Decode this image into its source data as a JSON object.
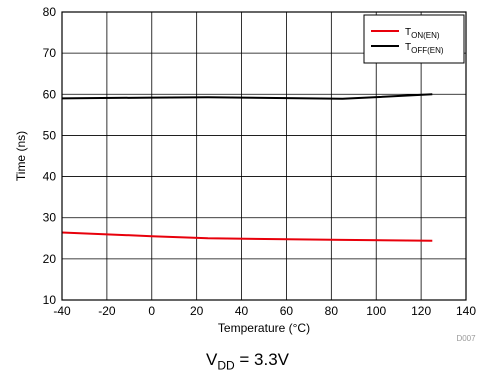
{
  "chart_data": {
    "type": "line",
    "xlabel": "Temperature (°C)",
    "ylabel": "Time (ns)",
    "xlim": [
      -40,
      140
    ],
    "ylim": [
      10,
      80
    ],
    "x_ticks": [
      -40,
      -20,
      0,
      20,
      40,
      60,
      80,
      100,
      120,
      140
    ],
    "y_ticks": [
      10,
      20,
      30,
      40,
      50,
      60,
      70,
      80
    ],
    "grid": true,
    "legend_position": "top-right",
    "series": [
      {
        "name": "T",
        "name_subscript": "ON(EN)",
        "color": "#e8000b",
        "x": [
          -40,
          0,
          25,
          85,
          125
        ],
        "y": [
          26.4,
          25.5,
          25.0,
          24.6,
          24.4
        ]
      },
      {
        "name": "T",
        "name_subscript": "OFF(EN)",
        "color": "#000000",
        "x": [
          -40,
          0,
          25,
          85,
          125
        ],
        "y": [
          59.0,
          59.2,
          59.3,
          58.9,
          60.0
        ]
      }
    ]
  },
  "figure_id": "D007",
  "caption": {
    "main": "V",
    "subscript": "DD",
    "suffix": " = 3.3V"
  }
}
